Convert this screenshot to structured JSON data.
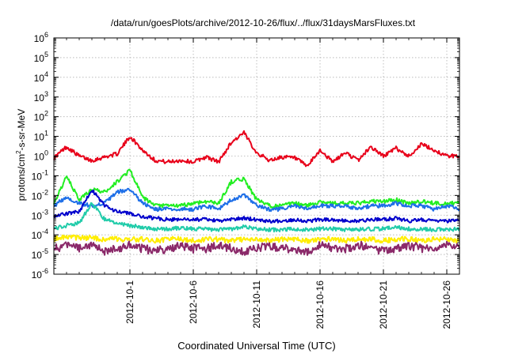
{
  "chart_data": {
    "type": "line",
    "title": "/data/run/goesPlots/archive/2012-10-26/flux/../flux/31daysMarsFluxes.txt",
    "xlabel": "Coordinated Universal Time (UTC)",
    "ylabel": {
      "base": "protons/cm",
      "sup": "2",
      "rest": "-s-sr-MeV"
    },
    "yscale": "log",
    "ylim_exp": [
      -6,
      6
    ],
    "y_ticks": [
      {
        "base": "10",
        "exp": "-6",
        "e": -6
      },
      {
        "base": "10",
        "exp": "-5",
        "e": -5
      },
      {
        "base": "10",
        "exp": "-4",
        "e": -4
      },
      {
        "base": "10",
        "exp": "-3",
        "e": -3
      },
      {
        "base": "10",
        "exp": "-2",
        "e": -2
      },
      {
        "base": "10",
        "exp": "-1",
        "e": -1
      },
      {
        "base": "10",
        "exp": "0",
        "e": 0
      },
      {
        "base": "10",
        "exp": "1",
        "e": 1
      },
      {
        "base": "10",
        "exp": "2",
        "e": 2
      },
      {
        "base": "10",
        "exp": "3",
        "e": 3
      },
      {
        "base": "10",
        "exp": "4",
        "e": 4
      },
      {
        "base": "10",
        "exp": "5",
        "e": 5
      },
      {
        "base": "10",
        "exp": "6",
        "e": 6
      }
    ],
    "xlim": [
      "2012-09-25",
      "2012-10-27"
    ],
    "x_ticks": [
      "2012-10-1",
      "2012-10-6",
      "2012-10-11",
      "2012-10-16",
      "2012-10-21",
      "2012-10-26"
    ],
    "x_tick_dates": [
      "2012-10-01",
      "2012-10-06",
      "2012-10-11",
      "2012-10-16",
      "2012-10-21",
      "2012-10-26"
    ],
    "grid": true,
    "series": [
      {
        "color": "#e8001a",
        "x": [
          "2012-09-25",
          "2012-09-26",
          "2012-09-27",
          "2012-09-28",
          "2012-09-29",
          "2012-09-30",
          "2012-10-01",
          "2012-10-02",
          "2012-10-03",
          "2012-10-04",
          "2012-10-05",
          "2012-10-06",
          "2012-10-07",
          "2012-10-08",
          "2012-10-09",
          "2012-10-10",
          "2012-10-11",
          "2012-10-12",
          "2012-10-13",
          "2012-10-14",
          "2012-10-15",
          "2012-10-16",
          "2012-10-17",
          "2012-10-18",
          "2012-10-19",
          "2012-10-20",
          "2012-10-21",
          "2012-10-22",
          "2012-10-23",
          "2012-10-24",
          "2012-10-25",
          "2012-10-26",
          "2012-10-27"
        ],
        "y": [
          0.8,
          3.0,
          1.0,
          0.6,
          0.9,
          1.3,
          10.0,
          2.0,
          0.6,
          0.5,
          0.6,
          0.5,
          0.9,
          0.5,
          5.0,
          15.0,
          1.5,
          0.6,
          0.9,
          0.8,
          0.3,
          2.0,
          0.5,
          1.5,
          0.6,
          3.0,
          1.0,
          2.5,
          1.0,
          4.0,
          2.0,
          1.0,
          1.0
        ]
      },
      {
        "color": "#22ee22",
        "x": [
          "2012-09-25",
          "2012-09-26",
          "2012-09-27",
          "2012-09-28",
          "2012-09-29",
          "2012-09-30",
          "2012-10-01",
          "2012-10-02",
          "2012-10-03",
          "2012-10-04",
          "2012-10-05",
          "2012-10-06",
          "2012-10-07",
          "2012-10-08",
          "2012-10-09",
          "2012-10-10",
          "2012-10-11",
          "2012-10-12",
          "2012-10-13",
          "2012-10-14",
          "2012-10-15",
          "2012-10-16",
          "2012-10-17",
          "2012-10-18",
          "2012-10-19",
          "2012-10-20",
          "2012-10-21",
          "2012-10-22",
          "2012-10-23",
          "2012-10-24",
          "2012-10-25",
          "2012-10-26",
          "2012-10-27"
        ],
        "y": [
          0.004,
          0.09,
          0.006,
          0.02,
          0.015,
          0.05,
          0.2,
          0.008,
          0.003,
          0.003,
          0.003,
          0.004,
          0.005,
          0.004,
          0.05,
          0.07,
          0.006,
          0.003,
          0.003,
          0.004,
          0.003,
          0.005,
          0.004,
          0.004,
          0.004,
          0.005,
          0.005,
          0.006,
          0.004,
          0.005,
          0.004,
          0.004,
          0.004
        ]
      },
      {
        "color": "#1e6fe8",
        "x": [
          "2012-09-25",
          "2012-09-26",
          "2012-09-27",
          "2012-09-28",
          "2012-09-29",
          "2012-09-30",
          "2012-10-01",
          "2012-10-02",
          "2012-10-03",
          "2012-10-04",
          "2012-10-05",
          "2012-10-06",
          "2012-10-07",
          "2012-10-08",
          "2012-10-09",
          "2012-10-10",
          "2012-10-11",
          "2012-10-12",
          "2012-10-13",
          "2012-10-14",
          "2012-10-15",
          "2012-10-16",
          "2012-10-17",
          "2012-10-18",
          "2012-10-19",
          "2012-10-20",
          "2012-10-21",
          "2012-10-22",
          "2012-10-23",
          "2012-10-24",
          "2012-10-25",
          "2012-10-26",
          "2012-10-27"
        ],
        "y": [
          0.003,
          0.008,
          0.004,
          0.003,
          0.004,
          0.015,
          0.02,
          0.004,
          0.002,
          0.002,
          0.002,
          0.002,
          0.003,
          0.002,
          0.006,
          0.01,
          0.003,
          0.002,
          0.002,
          0.003,
          0.002,
          0.003,
          0.003,
          0.003,
          0.002,
          0.003,
          0.003,
          0.004,
          0.003,
          0.003,
          0.002,
          0.003,
          0.002
        ]
      },
      {
        "color": "#0000cc",
        "x": [
          "2012-09-25",
          "2012-09-26",
          "2012-09-27",
          "2012-09-28",
          "2012-09-29",
          "2012-09-30",
          "2012-10-01",
          "2012-10-02",
          "2012-10-03",
          "2012-10-04",
          "2012-10-05",
          "2012-10-06",
          "2012-10-07",
          "2012-10-08",
          "2012-10-09",
          "2012-10-10",
          "2012-10-11",
          "2012-10-12",
          "2012-10-13",
          "2012-10-14",
          "2012-10-15",
          "2012-10-16",
          "2012-10-17",
          "2012-10-18",
          "2012-10-19",
          "2012-10-20",
          "2012-10-21",
          "2012-10-22",
          "2012-10-23",
          "2012-10-24",
          "2012-10-25",
          "2012-10-26",
          "2012-10-27"
        ],
        "y": [
          0.0008,
          0.0012,
          0.0015,
          0.02,
          0.003,
          0.0015,
          0.0012,
          0.0008,
          0.0007,
          0.0006,
          0.0006,
          0.0006,
          0.0006,
          0.0005,
          0.0006,
          0.0007,
          0.0006,
          0.0005,
          0.0005,
          0.0006,
          0.0005,
          0.0006,
          0.0006,
          0.0005,
          0.0005,
          0.0006,
          0.0006,
          0.0007,
          0.0005,
          0.0006,
          0.0005,
          0.0005,
          0.0005
        ]
      },
      {
        "color": "#22ccaa",
        "x": [
          "2012-09-25",
          "2012-09-26",
          "2012-09-27",
          "2012-09-28",
          "2012-09-29",
          "2012-09-30",
          "2012-10-01",
          "2012-10-02",
          "2012-10-03",
          "2012-10-04",
          "2012-10-05",
          "2012-10-06",
          "2012-10-07",
          "2012-10-08",
          "2012-10-09",
          "2012-10-10",
          "2012-10-11",
          "2012-10-12",
          "2012-10-13",
          "2012-10-14",
          "2012-10-15",
          "2012-10-16",
          "2012-10-17",
          "2012-10-18",
          "2012-10-19",
          "2012-10-20",
          "2012-10-21",
          "2012-10-22",
          "2012-10-23",
          "2012-10-24",
          "2012-10-25",
          "2012-10-26",
          "2012-10-27"
        ],
        "y": [
          0.0002,
          0.0003,
          0.0004,
          0.004,
          0.0006,
          0.0004,
          0.0003,
          0.00025,
          0.0002,
          0.0002,
          0.00022,
          0.0002,
          0.0002,
          0.00018,
          0.0002,
          0.00025,
          0.0002,
          0.00018,
          0.00018,
          0.0002,
          0.00018,
          0.0002,
          0.0002,
          0.00018,
          0.00018,
          0.0002,
          0.0002,
          0.00025,
          0.0002,
          0.0002,
          0.00018,
          0.0002,
          0.00018
        ]
      },
      {
        "color": "#ffee00",
        "x": [
          "2012-09-25",
          "2012-09-26",
          "2012-09-27",
          "2012-09-28",
          "2012-09-29",
          "2012-09-30",
          "2012-10-01",
          "2012-10-02",
          "2012-10-03",
          "2012-10-04",
          "2012-10-05",
          "2012-10-06",
          "2012-10-07",
          "2012-10-08",
          "2012-10-09",
          "2012-10-10",
          "2012-10-11",
          "2012-10-12",
          "2012-10-13",
          "2012-10-14",
          "2012-10-15",
          "2012-10-16",
          "2012-10-17",
          "2012-10-18",
          "2012-10-19",
          "2012-10-20",
          "2012-10-21",
          "2012-10-22",
          "2012-10-23",
          "2012-10-24",
          "2012-10-25",
          "2012-10-26",
          "2012-10-27"
        ],
        "y": [
          6e-05,
          8e-05,
          7e-05,
          7e-05,
          6e-05,
          6e-05,
          6e-05,
          6e-05,
          5e-05,
          6e-05,
          6e-05,
          5e-05,
          6e-05,
          6e-05,
          5e-05,
          6e-05,
          6e-05,
          5e-05,
          6e-05,
          6e-05,
          5e-05,
          6e-05,
          6e-05,
          5e-05,
          6e-05,
          6e-05,
          5e-05,
          6e-05,
          6e-05,
          5e-05,
          6e-05,
          6e-05,
          5e-05
        ]
      },
      {
        "color": "#8b2a6a",
        "x": [
          "2012-09-25",
          "2012-09-26",
          "2012-09-27",
          "2012-09-28",
          "2012-09-29",
          "2012-09-30",
          "2012-10-01",
          "2012-10-02",
          "2012-10-03",
          "2012-10-04",
          "2012-10-05",
          "2012-10-06",
          "2012-10-07",
          "2012-10-08",
          "2012-10-09",
          "2012-10-10",
          "2012-10-11",
          "2012-10-12",
          "2012-10-13",
          "2012-10-14",
          "2012-10-15",
          "2012-10-16",
          "2012-10-17",
          "2012-10-18",
          "2012-10-19",
          "2012-10-20",
          "2012-10-21",
          "2012-10-22",
          "2012-10-23",
          "2012-10-24",
          "2012-10-25",
          "2012-10-26",
          "2012-10-27"
        ],
        "y": [
          2e-05,
          3e-05,
          2e-05,
          3e-05,
          1.5e-05,
          2e-05,
          3e-05,
          2e-05,
          1.5e-05,
          2e-05,
          3e-05,
          2e-05,
          2e-05,
          3e-05,
          2e-05,
          1.5e-05,
          2e-05,
          3e-05,
          2e-05,
          2e-05,
          1.5e-05,
          3e-05,
          2e-05,
          2e-05,
          3e-05,
          2e-05,
          1.5e-05,
          2e-05,
          3e-05,
          2e-05,
          2e-05,
          3e-05,
          2e-05
        ]
      }
    ]
  }
}
